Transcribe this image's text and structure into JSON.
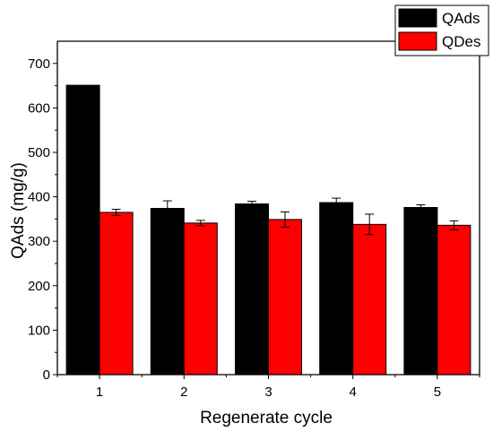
{
  "chart_data": {
    "type": "bar",
    "xlabel": "Regenerate cycle",
    "ylabel": "QAds (mg/g)",
    "ylim": [
      0,
      750
    ],
    "yticks": [
      0,
      100,
      200,
      300,
      400,
      500,
      600,
      700
    ],
    "categories": [
      "1",
      "2",
      "3",
      "4",
      "5"
    ],
    "grid": false,
    "legend_position": "top-right",
    "series": [
      {
        "name": "QAds",
        "color": "#000000",
        "values": [
          651,
          374,
          384,
          387,
          376
        ],
        "errors": [
          0,
          17,
          6,
          10,
          6
        ]
      },
      {
        "name": "QDes",
        "color": "#ff0000",
        "values": [
          365,
          341,
          349,
          338,
          336
        ],
        "errors": [
          7,
          6,
          17,
          23,
          10
        ]
      }
    ]
  }
}
